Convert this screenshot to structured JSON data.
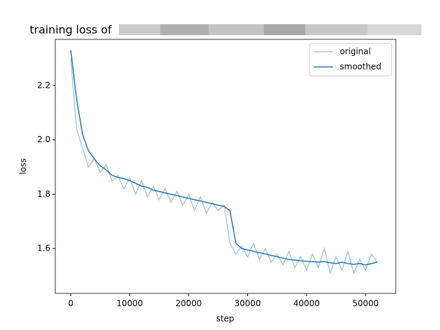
{
  "chart_data": {
    "type": "line",
    "title": "training loss of",
    "x_label": "step",
    "y_label": "loss",
    "x": [
      0,
      1000,
      2000,
      3000,
      4000,
      5000,
      6000,
      7000,
      8000,
      9000,
      10000,
      11000,
      12000,
      13000,
      14000,
      15000,
      16000,
      17000,
      18000,
      19000,
      20000,
      21000,
      22000,
      23000,
      24000,
      25000,
      26000,
      27000,
      28000,
      29000,
      30000,
      31000,
      32000,
      33000,
      34000,
      35000,
      36000,
      37000,
      38000,
      39000,
      40000,
      41000,
      42000,
      43000,
      44000,
      45000,
      46000,
      47000,
      48000,
      49000,
      50000,
      51000,
      52000
    ],
    "series": [
      {
        "name": "original",
        "color": "#a6c8e0",
        "values": [
          2.3,
          2.04,
          1.97,
          1.9,
          1.93,
          1.88,
          1.91,
          1.85,
          1.87,
          1.82,
          1.86,
          1.8,
          1.85,
          1.79,
          1.83,
          1.78,
          1.82,
          1.77,
          1.81,
          1.76,
          1.8,
          1.74,
          1.79,
          1.73,
          1.77,
          1.74,
          1.76,
          1.62,
          1.58,
          1.61,
          1.57,
          1.62,
          1.56,
          1.6,
          1.55,
          1.58,
          1.54,
          1.59,
          1.53,
          1.57,
          1.52,
          1.58,
          1.53,
          1.6,
          1.51,
          1.57,
          1.52,
          1.59,
          1.51,
          1.56,
          1.52,
          1.58,
          1.55
        ]
      },
      {
        "name": "smoothed",
        "color": "#1f77b4",
        "values": [
          2.33,
          2.15,
          2.02,
          1.96,
          1.93,
          1.905,
          1.89,
          1.87,
          1.862,
          1.858,
          1.85,
          1.84,
          1.83,
          1.825,
          1.815,
          1.81,
          1.805,
          1.8,
          1.795,
          1.79,
          1.785,
          1.78,
          1.775,
          1.77,
          1.765,
          1.76,
          1.755,
          1.74,
          1.62,
          1.6,
          1.595,
          1.59,
          1.585,
          1.58,
          1.575,
          1.57,
          1.565,
          1.56,
          1.558,
          1.555,
          1.553,
          1.552,
          1.55,
          1.552,
          1.548,
          1.545,
          1.55,
          1.545,
          1.542,
          1.545,
          1.54,
          1.545,
          1.55
        ]
      }
    ],
    "xlim": [
      -2625,
      55125
    ],
    "ylim": [
      1.435,
      2.37
    ],
    "xticks": [
      0,
      10000,
      20000,
      30000,
      40000,
      50000
    ],
    "yticks": [
      1.6,
      1.8,
      {
        "value": 2,
        "label": "2.0"
      },
      2.2
    ],
    "legend": "upper right"
  }
}
